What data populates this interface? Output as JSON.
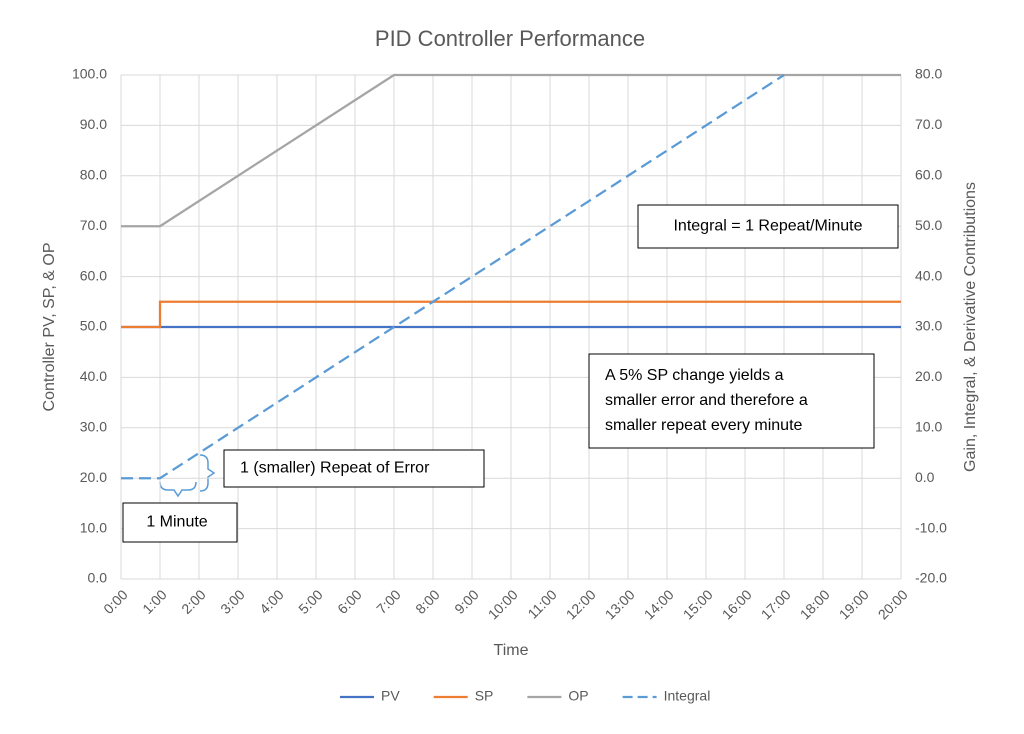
{
  "chart_data": {
    "type": "line",
    "title": "PID Controller Performance",
    "x_label": "Time",
    "y_label": "Controller PV, SP, & OP",
    "y2_label": "Gain, Integral, & Derivative Contributions",
    "xlim": [
      0,
      20
    ],
    "xticks": [
      {
        "value": 0,
        "label": "0:00"
      },
      {
        "value": 1,
        "label": "1:00"
      },
      {
        "value": 2,
        "label": "2:00"
      },
      {
        "value": 3,
        "label": "3:00"
      },
      {
        "value": 4,
        "label": "4:00"
      },
      {
        "value": 5,
        "label": "5:00"
      },
      {
        "value": 6,
        "label": "6:00"
      },
      {
        "value": 7,
        "label": "7:00"
      },
      {
        "value": 8,
        "label": "8:00"
      },
      {
        "value": 9,
        "label": "9:00"
      },
      {
        "value": 10,
        "label": "10:00"
      },
      {
        "value": 11,
        "label": "11:00"
      },
      {
        "value": 12,
        "label": "12:00"
      },
      {
        "value": 13,
        "label": "13:00"
      },
      {
        "value": 14,
        "label": "14:00"
      },
      {
        "value": 15,
        "label": "15:00"
      },
      {
        "value": 16,
        "label": "16:00"
      },
      {
        "value": 17,
        "label": "17:00"
      },
      {
        "value": 18,
        "label": "18:00"
      },
      {
        "value": 19,
        "label": "19:00"
      },
      {
        "value": 20,
        "label": "20:00"
      }
    ],
    "ylim": [
      0,
      100
    ],
    "yticks": [
      {
        "value": 0,
        "label": "0.0"
      },
      {
        "value": 10,
        "label": "10.0"
      },
      {
        "value": 20,
        "label": "20.0"
      },
      {
        "value": 30,
        "label": "30.0"
      },
      {
        "value": 40,
        "label": "40.0"
      },
      {
        "value": 50,
        "label": "50.0"
      },
      {
        "value": 60,
        "label": "60.0"
      },
      {
        "value": 70,
        "label": "70.0"
      },
      {
        "value": 80,
        "label": "80.0"
      },
      {
        "value": 90,
        "label": "90.0"
      },
      {
        "value": 100,
        "label": "100.0"
      }
    ],
    "y2lim": [
      -20,
      80
    ],
    "y2ticks": [
      {
        "value": -20,
        "label": "-20.0"
      },
      {
        "value": -10,
        "label": "-10.0"
      },
      {
        "value": 0,
        "label": "0.0"
      },
      {
        "value": 10,
        "label": "10.0"
      },
      {
        "value": 20,
        "label": "20.0"
      },
      {
        "value": 30,
        "label": "30.0"
      },
      {
        "value": 40,
        "label": "40.0"
      },
      {
        "value": 50,
        "label": "50.0"
      },
      {
        "value": 60,
        "label": "60.0"
      },
      {
        "value": 70,
        "label": "70.0"
      },
      {
        "value": 80,
        "label": "80.0"
      }
    ],
    "grid": true,
    "legend": "bottom",
    "series": [
      {
        "name": "PV",
        "color": "#4472c4",
        "x": [
          0,
          20
        ],
        "values": [
          50,
          50
        ]
      },
      {
        "name": "SP",
        "color": "#ed7d31",
        "x": [
          0,
          1,
          1,
          20
        ],
        "values": [
          50,
          50,
          55,
          55
        ]
      },
      {
        "name": "OP",
        "color": "#a5a5a5",
        "x": [
          0,
          1,
          7,
          20
        ],
        "values": [
          70,
          70,
          100,
          100
        ]
      },
      {
        "name": "Integral",
        "color": "#5b9bd5",
        "dashed": true,
        "axis": "y2",
        "x": [
          0,
          1,
          17
        ],
        "values": [
          0,
          0,
          80
        ]
      }
    ],
    "annotations": [
      {
        "lines": [
          "Integral = 1 Repeat/Minute"
        ]
      },
      {
        "lines": [
          "A 5% SP change yields a",
          "smaller error and therefore a",
          "smaller repeat every minute"
        ]
      },
      {
        "lines": [
          "1 (smaller) Repeat of Error"
        ]
      },
      {
        "lines": [
          "1 Minute"
        ]
      }
    ]
  }
}
